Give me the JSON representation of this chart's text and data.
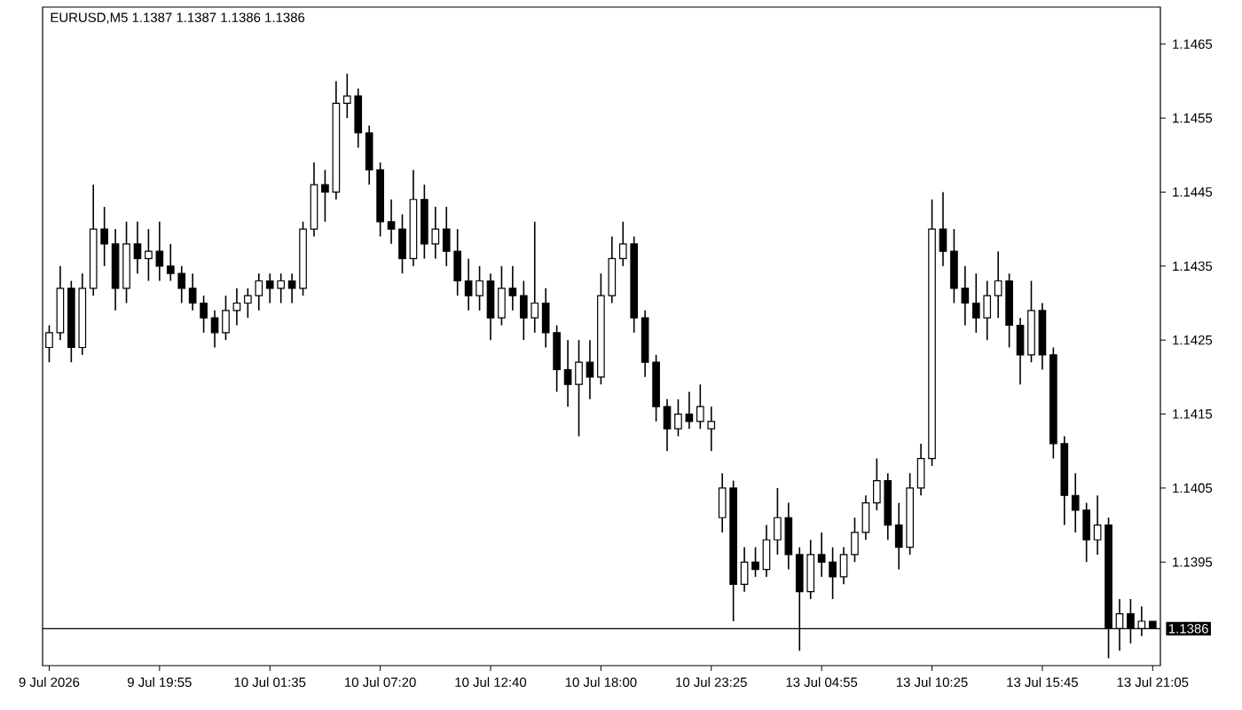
{
  "chart_data": {
    "type": "candlestick",
    "title": "EURUSD,M5  1.1387 1.1387 1.1386 1.1386",
    "color": "#000000",
    "categories": [
      "9 Jul 2026",
      null,
      null,
      null,
      null,
      null,
      null,
      null,
      null,
      null,
      "9 Jul 19:55",
      null,
      null,
      null,
      null,
      null,
      null,
      null,
      null,
      null,
      "10 Jul 01:35",
      null,
      null,
      null,
      null,
      null,
      null,
      null,
      null,
      null,
      "10 Jul 07:20",
      null,
      null,
      null,
      null,
      null,
      null,
      null,
      null,
      null,
      "10 Jul 12:40",
      null,
      null,
      null,
      null,
      null,
      null,
      null,
      null,
      null,
      "10 Jul 18:00",
      null,
      null,
      null,
      null,
      null,
      null,
      null,
      null,
      null,
      "10 Jul 23:25",
      null,
      null,
      null,
      null,
      null,
      null,
      null,
      null,
      null,
      "13 Jul 04:55",
      null,
      null,
      null,
      null,
      null,
      null,
      null,
      null,
      null,
      "13 Jul 10:25",
      null,
      null,
      null,
      null,
      null,
      null,
      null,
      null,
      null,
      "13 Jul 15:45",
      null,
      null,
      null,
      null,
      null,
      null,
      null,
      null,
      null,
      "13 Jul 21:05"
    ],
    "ohlc": [
      [
        1.1424,
        1.1427,
        1.1422,
        1.1426
      ],
      [
        1.1426,
        1.1435,
        1.1425,
        1.1432
      ],
      [
        1.1432,
        1.1433,
        1.1422,
        1.1424
      ],
      [
        1.1424,
        1.1434,
        1.1423,
        1.1432
      ],
      [
        1.1432,
        1.1446,
        1.1431,
        1.144
      ],
      [
        1.144,
        1.1443,
        1.1435,
        1.1438
      ],
      [
        1.1438,
        1.144,
        1.1429,
        1.1432
      ],
      [
        1.1432,
        1.1441,
        1.143,
        1.1438
      ],
      [
        1.1438,
        1.1441,
        1.1434,
        1.1436
      ],
      [
        1.1436,
        1.144,
        1.1433,
        1.1437
      ],
      [
        1.1437,
        1.1441,
        1.1433,
        1.1435
      ],
      [
        1.1435,
        1.1438,
        1.1433,
        1.1434
      ],
      [
        1.1434,
        1.1435,
        1.143,
        1.1432
      ],
      [
        1.1432,
        1.1434,
        1.1429,
        1.143
      ],
      [
        1.143,
        1.1431,
        1.1426,
        1.1428
      ],
      [
        1.1428,
        1.1429,
        1.1424,
        1.1426
      ],
      [
        1.1426,
        1.1431,
        1.1425,
        1.1429
      ],
      [
        1.1429,
        1.1432,
        1.1427,
        1.143
      ],
      [
        1.143,
        1.1432,
        1.1428,
        1.1431
      ],
      [
        1.1431,
        1.1434,
        1.1429,
        1.1433
      ],
      [
        1.1433,
        1.1434,
        1.143,
        1.1432
      ],
      [
        1.1432,
        1.1434,
        1.143,
        1.1433
      ],
      [
        1.1433,
        1.1434,
        1.143,
        1.1432
      ],
      [
        1.1432,
        1.1441,
        1.1431,
        1.144
      ],
      [
        1.144,
        1.1449,
        1.1439,
        1.1446
      ],
      [
        1.1446,
        1.1448,
        1.1441,
        1.1445
      ],
      [
        1.1445,
        1.146,
        1.1444,
        1.1457
      ],
      [
        1.1457,
        1.1461,
        1.1455,
        1.1458
      ],
      [
        1.1458,
        1.1459,
        1.1451,
        1.1453
      ],
      [
        1.1453,
        1.1454,
        1.1446,
        1.1448
      ],
      [
        1.1448,
        1.1449,
        1.1439,
        1.1441
      ],
      [
        1.1441,
        1.1444,
        1.1438,
        1.144
      ],
      [
        1.144,
        1.1442,
        1.1434,
        1.1436
      ],
      [
        1.1436,
        1.1448,
        1.1435,
        1.1444
      ],
      [
        1.1444,
        1.1446,
        1.1436,
        1.1438
      ],
      [
        1.1438,
        1.1443,
        1.1436,
        1.144
      ],
      [
        1.144,
        1.1443,
        1.1435,
        1.1437
      ],
      [
        1.1437,
        1.144,
        1.1431,
        1.1433
      ],
      [
        1.1433,
        1.1436,
        1.1429,
        1.1431
      ],
      [
        1.1431,
        1.1435,
        1.1429,
        1.1433
      ],
      [
        1.1433,
        1.1434,
        1.1425,
        1.1428
      ],
      [
        1.1428,
        1.1435,
        1.1427,
        1.1432
      ],
      [
        1.1432,
        1.1435,
        1.1429,
        1.1431
      ],
      [
        1.1431,
        1.1433,
        1.1425,
        1.1428
      ],
      [
        1.1428,
        1.1441,
        1.1426,
        1.143
      ],
      [
        1.143,
        1.1432,
        1.1424,
        1.1426
      ],
      [
        1.1426,
        1.1427,
        1.1418,
        1.1421
      ],
      [
        1.1421,
        1.1425,
        1.1416,
        1.1419
      ],
      [
        1.1419,
        1.1425,
        1.1412,
        1.1422
      ],
      [
        1.1422,
        1.1425,
        1.1417,
        1.142
      ],
      [
        1.142,
        1.1434,
        1.1419,
        1.1431
      ],
      [
        1.1431,
        1.1439,
        1.143,
        1.1436
      ],
      [
        1.1436,
        1.1441,
        1.1435,
        1.1438
      ],
      [
        1.1438,
        1.1439,
        1.1426,
        1.1428
      ],
      [
        1.1428,
        1.1429,
        1.142,
        1.1422
      ],
      [
        1.1422,
        1.1423,
        1.1414,
        1.1416
      ],
      [
        1.1416,
        1.1417,
        1.141,
        1.1413
      ],
      [
        1.1413,
        1.1417,
        1.1412,
        1.1415
      ],
      [
        1.1415,
        1.1418,
        1.1413,
        1.1414
      ],
      [
        1.1414,
        1.1419,
        1.1413,
        1.1416
      ],
      [
        1.1413,
        1.1416,
        1.141,
        1.1414
      ],
      [
        1.1401,
        1.1407,
        1.1399,
        1.1405
      ],
      [
        1.1405,
        1.1406,
        1.1387,
        1.1392
      ],
      [
        1.1392,
        1.1397,
        1.1391,
        1.1395
      ],
      [
        1.1395,
        1.1397,
        1.1393,
        1.1394
      ],
      [
        1.1394,
        1.14,
        1.1393,
        1.1398
      ],
      [
        1.1398,
        1.1405,
        1.1396,
        1.1401
      ],
      [
        1.1401,
        1.1403,
        1.1394,
        1.1396
      ],
      [
        1.1396,
        1.1397,
        1.1383,
        1.1391
      ],
      [
        1.1391,
        1.1398,
        1.139,
        1.1396
      ],
      [
        1.1396,
        1.1399,
        1.1393,
        1.1395
      ],
      [
        1.1395,
        1.1397,
        1.139,
        1.1393
      ],
      [
        1.1393,
        1.1397,
        1.1392,
        1.1396
      ],
      [
        1.1396,
        1.1401,
        1.1395,
        1.1399
      ],
      [
        1.1399,
        1.1404,
        1.1398,
        1.1403
      ],
      [
        1.1403,
        1.1409,
        1.1402,
        1.1406
      ],
      [
        1.1406,
        1.1407,
        1.1398,
        1.14
      ],
      [
        1.14,
        1.1403,
        1.1394,
        1.1397
      ],
      [
        1.1397,
        1.1407,
        1.1396,
        1.1405
      ],
      [
        1.1405,
        1.1411,
        1.1404,
        1.1409
      ],
      [
        1.1409,
        1.1444,
        1.1408,
        1.144
      ],
      [
        1.144,
        1.1445,
        1.1435,
        1.1437
      ],
      [
        1.1437,
        1.144,
        1.143,
        1.1432
      ],
      [
        1.1432,
        1.1435,
        1.1427,
        1.143
      ],
      [
        1.143,
        1.1434,
        1.1426,
        1.1428
      ],
      [
        1.1428,
        1.1433,
        1.1425,
        1.1431
      ],
      [
        1.1431,
        1.1437,
        1.1428,
        1.1433
      ],
      [
        1.1433,
        1.1434,
        1.1424,
        1.1427
      ],
      [
        1.1427,
        1.1428,
        1.1419,
        1.1423
      ],
      [
        1.1423,
        1.1433,
        1.1422,
        1.1429
      ],
      [
        1.1429,
        1.143,
        1.1421,
        1.1423
      ],
      [
        1.1423,
        1.1424,
        1.1409,
        1.1411
      ],
      [
        1.1411,
        1.1412,
        1.14,
        1.1404
      ],
      [
        1.1404,
        1.1407,
        1.1399,
        1.1402
      ],
      [
        1.1402,
        1.1403,
        1.1395,
        1.1398
      ],
      [
        1.1398,
        1.1404,
        1.1396,
        1.14
      ],
      [
        1.14,
        1.1401,
        1.1382,
        1.1386
      ],
      [
        1.1386,
        1.139,
        1.1383,
        1.1388
      ],
      [
        1.1388,
        1.139,
        1.1384,
        1.1386
      ],
      [
        1.1386,
        1.1389,
        1.1385,
        1.1387
      ],
      [
        1.1387,
        1.1387,
        1.1386,
        1.1386
      ]
    ],
    "ylim": [
      1.1381,
      1.147
    ],
    "yticks": [
      1.1395,
      1.1405,
      1.1415,
      1.1425,
      1.1435,
      1.1445,
      1.1455,
      1.1465
    ],
    "ref_lines": [
      {
        "axis": "y",
        "value": 1.1386,
        "label": "1.1386",
        "color": "#000000"
      }
    ]
  }
}
